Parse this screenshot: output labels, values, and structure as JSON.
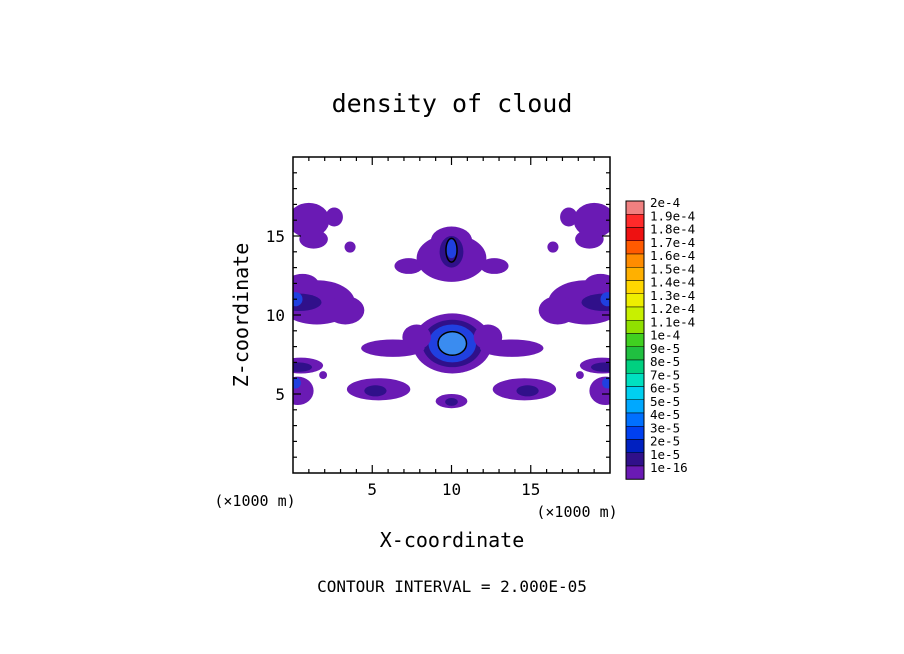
{
  "chart_data": {
    "type": "contour",
    "title": "density of cloud",
    "xlabel": "X-coordinate",
    "ylabel": "Z-coordinate",
    "x_unit": "(×1000 m)",
    "z_unit": "(×1000 m)",
    "xlim": [
      0,
      20
    ],
    "ylim": [
      0,
      20
    ],
    "x_ticks": [
      5,
      10,
      15
    ],
    "y_ticks": [
      5,
      10,
      15
    ],
    "footer": "CONTOUR INTERVAL = 2.000E-05",
    "contour_interval": 2e-05,
    "colorbar": {
      "labels": [
        "2e-4",
        "1.9e-4",
        "1.8e-4",
        "1.7e-4",
        "1.6e-4",
        "1.5e-4",
        "1.4e-4",
        "1.3e-4",
        "1.2e-4",
        "1.1e-4",
        "1e-4",
        "9e-5",
        "8e-5",
        "7e-5",
        "6e-5",
        "5e-5",
        "4e-5",
        "3e-5",
        "2e-5",
        "1e-5",
        "1e-16"
      ],
      "colors": [
        "#f08080",
        "#ff2a2a",
        "#ee1111",
        "#ff5a00",
        "#ff8c00",
        "#ffb000",
        "#ffd700",
        "#eeee00",
        "#c8f000",
        "#90e000",
        "#40d020",
        "#20c040",
        "#00d080",
        "#00e0c0",
        "#00d0f0",
        "#00a8ff",
        "#0070ff",
        "#0040f0",
        "#0020c0",
        "#30108a",
        "#6a1ab4"
      ]
    },
    "cloud_regions": [
      {
        "name": "central core",
        "x": 10,
        "z": 8.2,
        "max_level": "4e-5"
      },
      {
        "name": "upper core",
        "x": 10,
        "z": 14.0,
        "max_level": "3e-5"
      },
      {
        "name": "left lower band",
        "x": 5.5,
        "z": 5.4,
        "max_level": "1e-5"
      },
      {
        "name": "right lower band",
        "x": 14.5,
        "z": 5.4,
        "max_level": "1e-5"
      },
      {
        "name": "left mid band",
        "x": 2.5,
        "z": 10.6,
        "max_level": "1e-5"
      },
      {
        "name": "right mid band",
        "x": 17.5,
        "z": 10.6,
        "max_level": "1e-5"
      },
      {
        "name": "left top patch",
        "x": 1.5,
        "z": 16.0,
        "max_level": "1e-5"
      },
      {
        "name": "right top patch",
        "x": 18.5,
        "z": 16.0,
        "max_level": "1e-5"
      }
    ]
  }
}
